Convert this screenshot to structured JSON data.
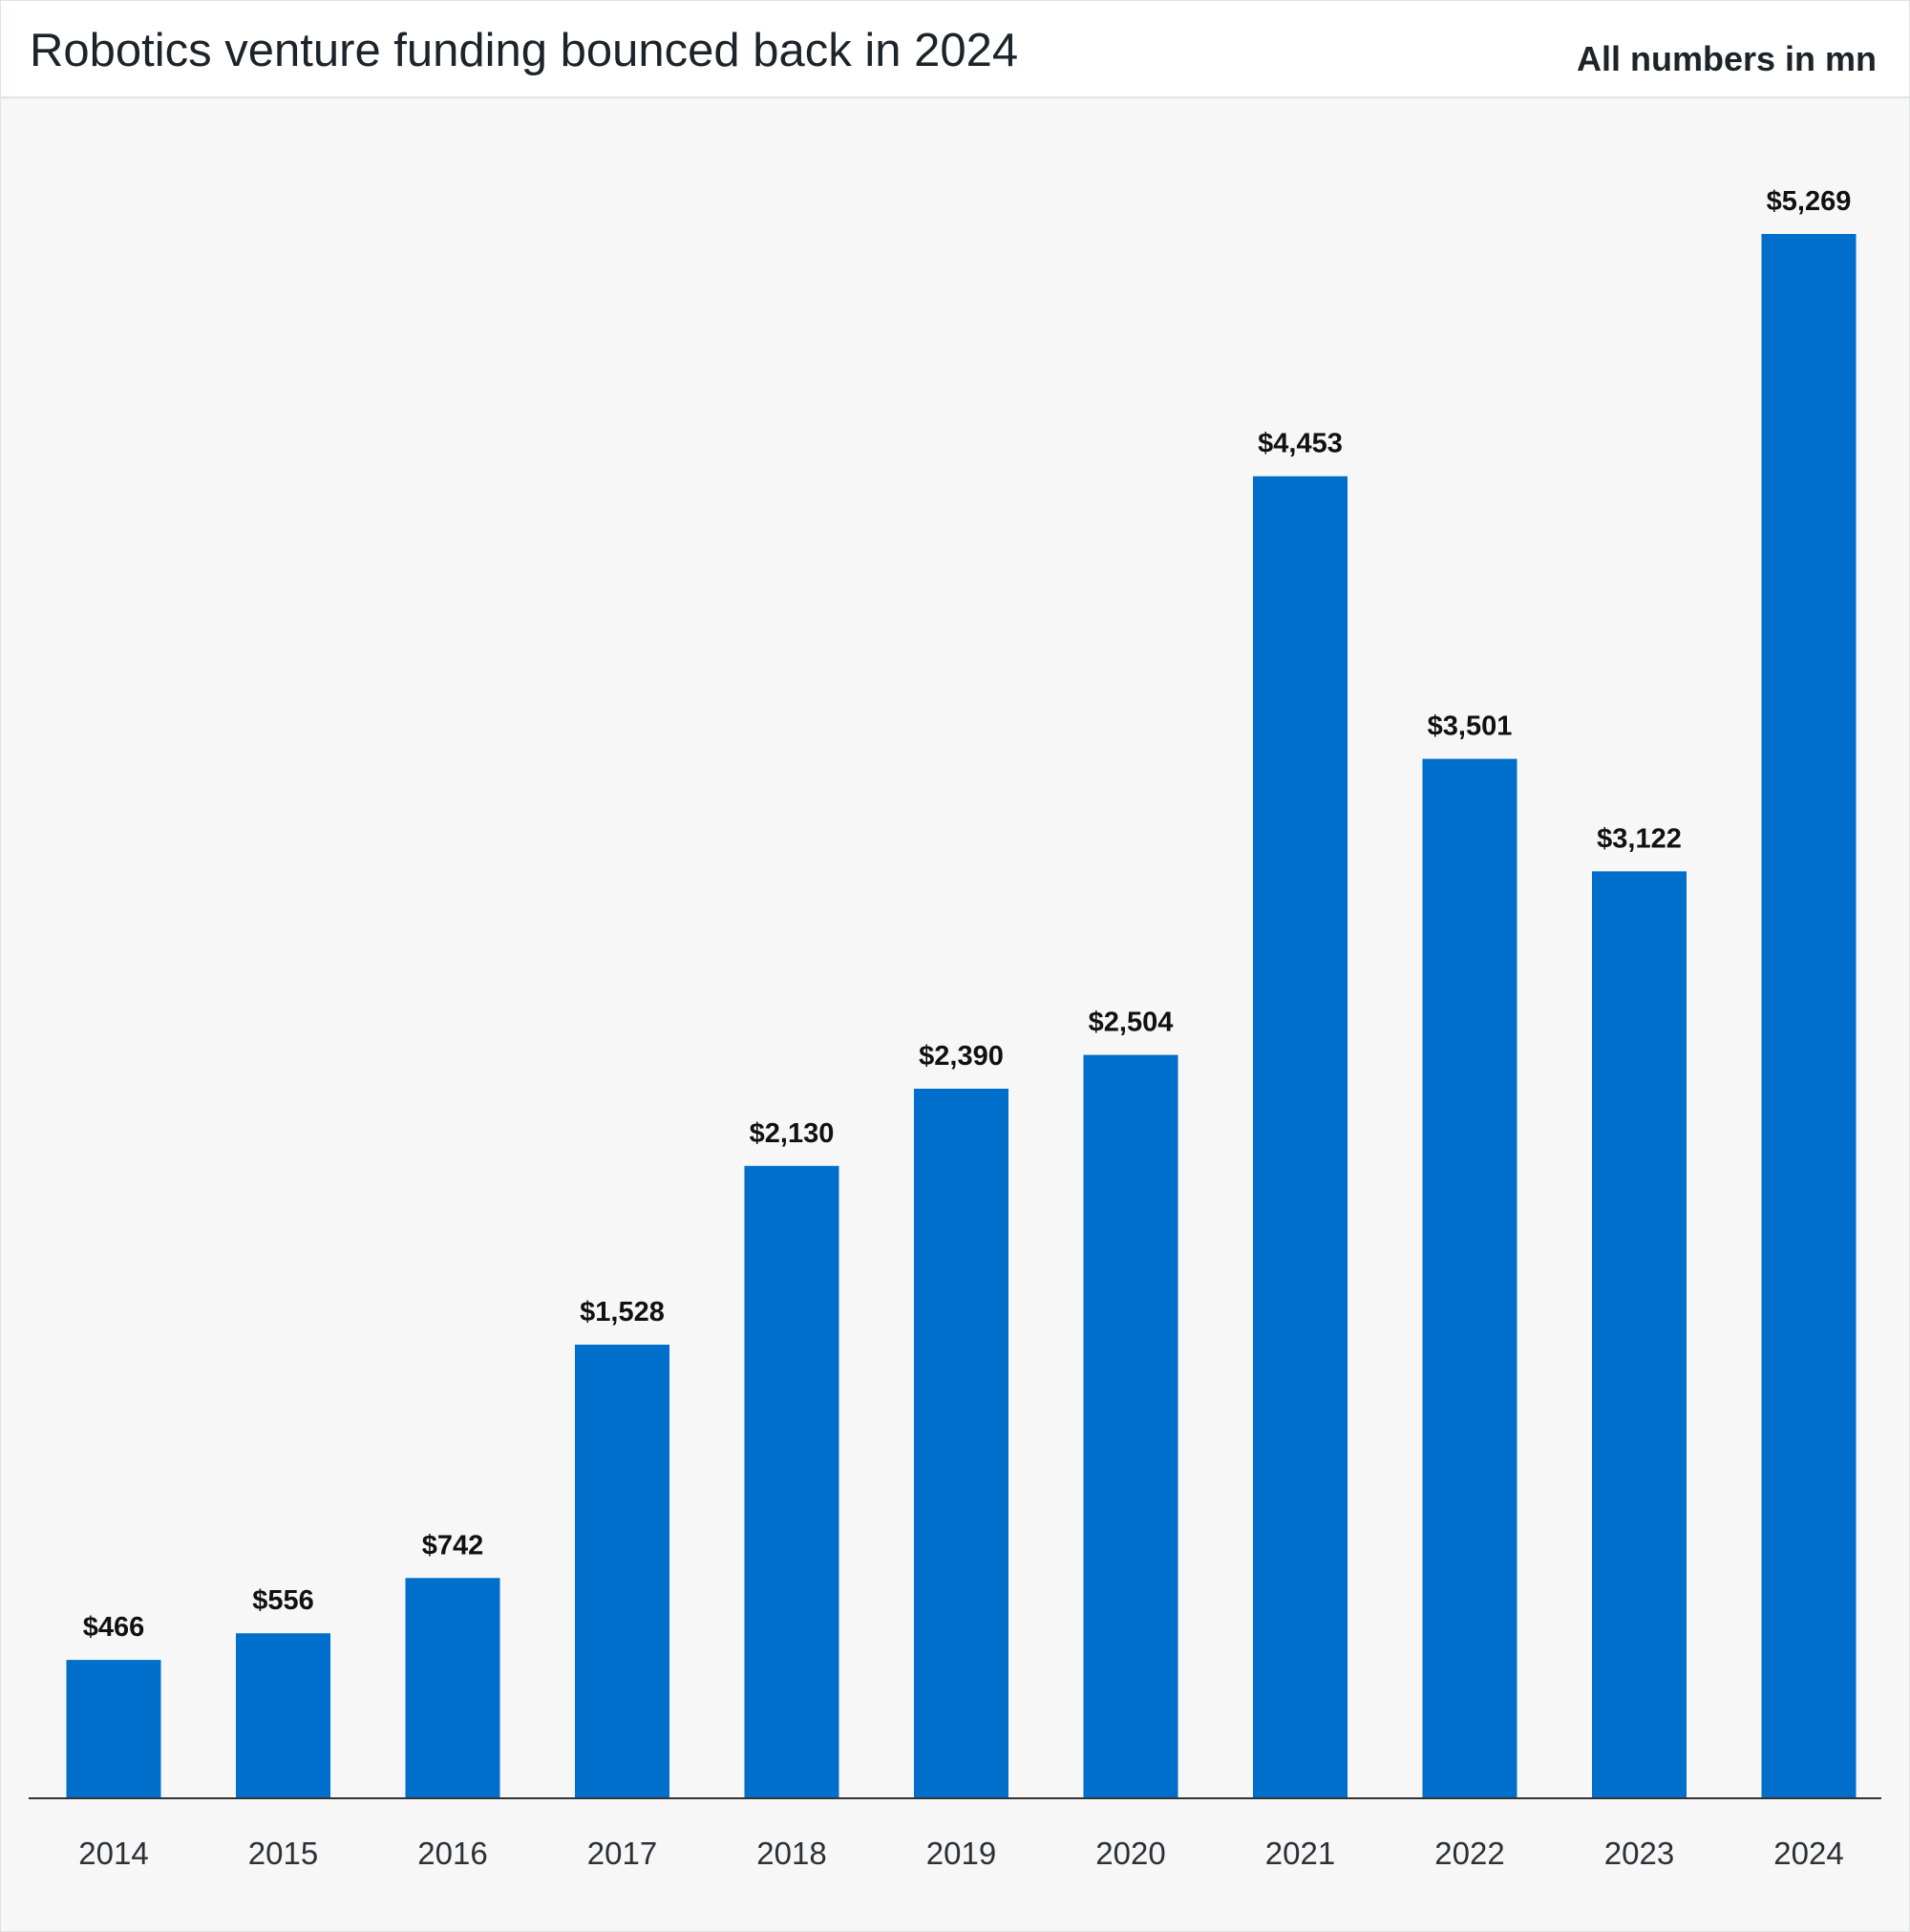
{
  "header": {
    "title": "Robotics venture funding bounced back in 2024",
    "units": "All numbers in mn"
  },
  "colors": {
    "bar": "#006fcb",
    "axis": "#333333"
  },
  "chart_data": {
    "type": "bar",
    "title": "Robotics venture funding bounced back in 2024",
    "subtitle": "All numbers in mn",
    "categories": [
      "2014",
      "2015",
      "2016",
      "2017",
      "2018",
      "2019",
      "2020",
      "2021",
      "2022",
      "2023",
      "2024"
    ],
    "values": [
      466,
      556,
      742,
      1528,
      2130,
      2390,
      2504,
      4453,
      3501,
      3122,
      5269
    ],
    "data_labels": [
      "$466",
      "$556",
      "$742",
      "$1,528",
      "$2,130",
      "$2,390",
      "$2,504",
      "$4,453",
      "$3,501",
      "$3,122",
      "$5,269"
    ],
    "xlabel": "",
    "ylabel": "",
    "ylim": [
      0,
      5269
    ],
    "grid": false,
    "legend": "none"
  }
}
